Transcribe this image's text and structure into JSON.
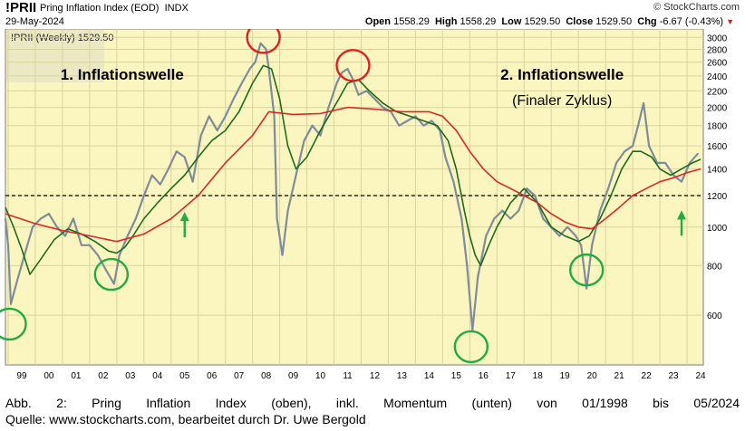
{
  "header": {
    "symbol": "!PRII",
    "name": "Pring Inflation Index (EOD)",
    "exchange": "INDX",
    "date": "29-May-2024",
    "brand": "© StockCharts.com",
    "open_label": "Open",
    "open": "1558.29",
    "high_label": "High",
    "high": "1558.29",
    "low_label": "Low",
    "low": "1529.50",
    "close_label": "Close",
    "close": "1529.50",
    "chg_label": "Chg",
    "chg": "-6.67 (-0.43%)",
    "down_marker": "▼"
  },
  "chart_data": {
    "type": "line",
    "legend_label": "!PRII (Weekly) 1529.50",
    "y_scale": "log",
    "ylim": [
      450,
      3150
    ],
    "xlim": [
      1998.9,
      2024.6
    ],
    "yticks": [
      600,
      800,
      1000,
      1200,
      1400,
      1600,
      1800,
      2000,
      2200,
      2400,
      2600,
      2800,
      3000
    ],
    "ytick_labels": [
      "600",
      "800",
      "1000",
      "1200",
      "1400",
      "1600",
      "1800",
      "2000",
      "2200",
      "2400",
      "2600",
      "2800",
      "3000"
    ],
    "xticks": [
      1999,
      2000,
      2001,
      2002,
      2003,
      2004,
      2005,
      2006,
      2007,
      2008,
      2009,
      2010,
      2011,
      2012,
      2013,
      2014,
      2015,
      2016,
      2017,
      2018,
      2019,
      2020,
      2021,
      2022,
      2023,
      2024
    ],
    "xtick_labels": [
      "99",
      "00",
      "01",
      "02",
      "03",
      "04",
      "05",
      "06",
      "07",
      "08",
      "09",
      "10",
      "11",
      "12",
      "13",
      "14",
      "15",
      "16",
      "17",
      "18",
      "19",
      "20",
      "21",
      "22",
      "23",
      "24"
    ],
    "reference_level": 1200,
    "series": [
      {
        "color": "#7f8c9a",
        "x": [
          1998.9,
          1999.0,
          1999.1,
          1999.3,
          1999.6,
          1999.9,
          2000.2,
          2000.5,
          2000.8,
          2001.1,
          2001.4,
          2001.7,
          2002.0,
          2002.3,
          2002.6,
          2002.9,
          2003.1,
          2003.4,
          2003.7,
          2004.0,
          2004.3,
          2004.6,
          2004.9,
          2005.2,
          2005.5,
          2005.8,
          2006.1,
          2006.4,
          2006.7,
          2007.0,
          2007.3,
          2007.6,
          2007.9,
          2008.1,
          2008.3,
          2008.5,
          2008.6,
          2008.8,
          2008.9,
          2009.1,
          2009.3,
          2009.6,
          2009.9,
          2010.2,
          2010.5,
          2010.8,
          2011.1,
          2011.3,
          2011.5,
          2011.7,
          2011.9,
          2012.2,
          2012.5,
          2012.8,
          2013.1,
          2013.4,
          2013.7,
          2014.0,
          2014.3,
          2014.6,
          2014.9,
          2015.1,
          2015.4,
          2015.7,
          2015.9,
          2016.1,
          2016.3,
          2016.6,
          2016.9,
          2017.2,
          2017.5,
          2017.8,
          2018.1,
          2018.4,
          2018.7,
          2019.0,
          2019.3,
          2019.6,
          2019.9,
          2020.1,
          2020.3,
          2020.5,
          2020.8,
          2021.1,
          2021.4,
          2021.7,
          2022.0,
          2022.2,
          2022.4,
          2022.6,
          2022.9,
          2023.2,
          2023.5,
          2023.8,
          2024.1,
          2024.4
        ],
        "y": [
          1050,
          900,
          640,
          720,
          850,
          1000,
          1050,
          1080,
          1000,
          950,
          1050,
          900,
          900,
          850,
          780,
          720,
          850,
          950,
          1050,
          1200,
          1350,
          1280,
          1400,
          1550,
          1500,
          1300,
          1700,
          1900,
          1750,
          1900,
          2100,
          2300,
          2500,
          2600,
          2900,
          2800,
          2500,
          1900,
          1050,
          850,
          1100,
          1350,
          1650,
          1800,
          1700,
          2000,
          2300,
          2450,
          2500,
          2350,
          2150,
          2200,
          2100,
          2000,
          1950,
          1800,
          1850,
          1900,
          1800,
          1850,
          1750,
          1500,
          1300,
          1050,
          800,
          550,
          750,
          950,
          1050,
          1100,
          1050,
          1100,
          1250,
          1200,
          1050,
          1000,
          950,
          1000,
          950,
          900,
          700,
          900,
          1100,
          1250,
          1450,
          1550,
          1600,
          1800,
          2050,
          1600,
          1450,
          1450,
          1350,
          1300,
          1450,
          1529.5
        ]
      },
      {
        "color": "#1e6b1e",
        "x": [
          1998.9,
          1999.2,
          1999.5,
          1999.8,
          2000.2,
          2000.7,
          2001.2,
          2001.7,
          2002.2,
          2002.7,
          2003.0,
          2003.3,
          2003.6,
          2004.0,
          2004.5,
          2005.0,
          2005.5,
          2006.0,
          2006.5,
          2007.0,
          2007.5,
          2008.0,
          2008.4,
          2008.7,
          2009.0,
          2009.3,
          2009.6,
          2010.0,
          2010.5,
          2011.0,
          2011.5,
          2011.9,
          2012.3,
          2012.8,
          2013.3,
          2013.8,
          2014.3,
          2014.8,
          2015.2,
          2015.5,
          2015.8,
          2016.0,
          2016.2,
          2016.4,
          2016.7,
          2017.0,
          2017.5,
          2018.0,
          2018.5,
          2019.0,
          2019.5,
          2020.0,
          2020.4,
          2020.8,
          2021.2,
          2021.6,
          2022.0,
          2022.3,
          2022.7,
          2023.0,
          2023.4,
          2023.8,
          2024.2,
          2024.5
        ],
        "y": [
          1120,
          1000,
          880,
          760,
          830,
          930,
          990,
          960,
          920,
          870,
          860,
          890,
          950,
          1050,
          1150,
          1250,
          1350,
          1500,
          1650,
          1750,
          1950,
          2300,
          2550,
          2500,
          2100,
          1600,
          1400,
          1500,
          1750,
          2000,
          2300,
          2350,
          2200,
          2050,
          1950,
          1900,
          1850,
          1800,
          1650,
          1400,
          1100,
          950,
          850,
          800,
          900,
          1000,
          1150,
          1250,
          1150,
          1000,
          950,
          920,
          950,
          1050,
          1200,
          1400,
          1550,
          1550,
          1500,
          1400,
          1350,
          1400,
          1450,
          1480
        ]
      },
      {
        "color": "#d42a2a",
        "x": [
          1998.9,
          2000.0,
          2001.0,
          2002.0,
          2003.0,
          2004.0,
          2005.0,
          2006.0,
          2007.0,
          2008.0,
          2008.6,
          2009.5,
          2010.5,
          2011.5,
          2012.5,
          2013.5,
          2014.5,
          2015.0,
          2015.5,
          2016.0,
          2016.5,
          2017.0,
          2017.5,
          2018.0,
          2018.5,
          2019.0,
          2019.5,
          2020.0,
          2020.5,
          2021.0,
          2021.5,
          2022.0,
          2022.5,
          2023.0,
          2023.5,
          2024.0,
          2024.5
        ],
        "y": [
          1080,
          1020,
          980,
          950,
          920,
          960,
          1050,
          1200,
          1450,
          1700,
          1950,
          1920,
          1930,
          2000,
          1980,
          1950,
          1950,
          1900,
          1750,
          1550,
          1400,
          1300,
          1250,
          1200,
          1150,
          1080,
          1030,
          1000,
          990,
          1050,
          1120,
          1200,
          1250,
          1300,
          1330,
          1370,
          1400
        ]
      }
    ],
    "annotations": [
      {
        "text": "1. Inflationswelle",
        "x": 2003.2,
        "y": 2350
      },
      {
        "text": "2. Inflationswelle",
        "x": 2019.4,
        "y": 2350
      },
      {
        "text": "(Finaler Zyklus)",
        "x": 2019.4,
        "y": 2030
      }
    ],
    "circles": [
      {
        "color": "#22aa44",
        "x": 1999.05,
        "y": 570
      },
      {
        "color": "#22aa44",
        "x": 2002.8,
        "y": 760
      },
      {
        "color": "#dd2222",
        "x": 2008.4,
        "y": 3000
      },
      {
        "color": "#dd2222",
        "x": 2011.7,
        "y": 2550
      },
      {
        "color": "#22aa44",
        "x": 2016.05,
        "y": 500
      },
      {
        "color": "#22aa44",
        "x": 2020.3,
        "y": 780
      }
    ],
    "arrows": [
      {
        "color": "#22aa44",
        "x": 2005.5,
        "y": 1080
      },
      {
        "color": "#22aa44",
        "x": 2023.8,
        "y": 1090
      }
    ]
  },
  "caption": {
    "line1": "Abb. 2: Pring Inflation Index (oben), inkl. Momentum (unten) von 01/1998 bis 05/2024",
    "line2": "Quelle: www.stockcharts.com, bearbeitet durch Dr. Uwe Bergold"
  }
}
